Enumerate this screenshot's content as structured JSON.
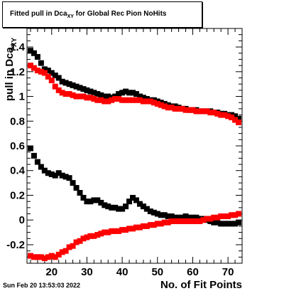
{
  "title": {
    "main": "Fitted pull in Dca",
    "sub": "XY",
    "rest": " for Global Rec Pion NoHits"
  },
  "datestamp": "Sun Feb 20 13:53:03 2022",
  "colors": {
    "series_black": "#000000",
    "series_red": "#ff0000",
    "frame": "#000000"
  },
  "chart_data": {
    "type": "scatter",
    "xlabel": "No. of Fit Points",
    "ylabel": {
      "main": "pull in Dca",
      "sub": "XY"
    },
    "xlim": [
      13,
      74
    ],
    "ylim": [
      -0.35,
      1.55
    ],
    "xticks": [
      20,
      30,
      40,
      50,
      60,
      70
    ],
    "yticks": [
      -0.2,
      0,
      0.2,
      0.4,
      0.6,
      0.8,
      1,
      1.2,
      1.4
    ],
    "ytick_labels": [
      "-0.2",
      "0",
      "0.2",
      "0.4",
      "0.6",
      "0.8",
      "1",
      "1.2",
      "1.4"
    ],
    "marker": "square",
    "series": [
      {
        "color": "#000000",
        "x": [
          14,
          15,
          16,
          17,
          18,
          19,
          20,
          21,
          22,
          23,
          24,
          25,
          26,
          27,
          28,
          29,
          30,
          31,
          32,
          33,
          34,
          35,
          36,
          37,
          38,
          39,
          40,
          41,
          42,
          43,
          44,
          45,
          46,
          47,
          48,
          49,
          50,
          51,
          52,
          53,
          54,
          55,
          56,
          57,
          58,
          59,
          60,
          61,
          62,
          63,
          64,
          65,
          66,
          67,
          68,
          69,
          70,
          71,
          72,
          73
        ],
        "y": [
          1.37,
          1.35,
          1.32,
          1.27,
          1.22,
          1.21,
          1.19,
          1.17,
          1.15,
          1.12,
          1.11,
          1.1,
          1.09,
          1.08,
          1.07,
          1.06,
          1.05,
          1.04,
          1.03,
          1.02,
          1.01,
          1.0,
          1.0,
          0.99,
          1.0,
          1.02,
          1.03,
          1.04,
          1.03,
          1.03,
          1.02,
          1.0,
          0.99,
          0.98,
          0.97,
          0.97,
          0.96,
          0.95,
          0.94,
          0.93,
          0.92,
          0.92,
          0.91,
          0.9,
          0.9,
          0.89,
          0.89,
          0.89,
          0.88,
          0.88,
          0.88,
          0.88,
          0.87,
          0.87,
          0.86,
          0.86,
          0.85,
          0.85,
          0.84,
          0.82
        ]
      },
      {
        "color": "#ff0000",
        "x": [
          14,
          15,
          16,
          17,
          18,
          19,
          20,
          21,
          22,
          23,
          24,
          25,
          26,
          27,
          28,
          29,
          30,
          31,
          32,
          33,
          34,
          35,
          36,
          37,
          38,
          39,
          40,
          41,
          42,
          43,
          44,
          45,
          46,
          47,
          48,
          49,
          50,
          51,
          52,
          53,
          54,
          55,
          56,
          57,
          58,
          59,
          60,
          61,
          62,
          63,
          64,
          65,
          66,
          67,
          68,
          69,
          70,
          71,
          72,
          73
        ],
        "y": [
          1.25,
          1.23,
          1.21,
          1.2,
          1.19,
          1.16,
          1.13,
          1.08,
          1.05,
          1.03,
          1.02,
          1.02,
          1.01,
          1.0,
          1.0,
          1.0,
          0.99,
          0.99,
          0.98,
          0.97,
          0.97,
          0.96,
          0.96,
          0.97,
          0.98,
          0.98,
          0.97,
          0.97,
          0.97,
          0.97,
          0.97,
          0.97,
          0.96,
          0.96,
          0.96,
          0.95,
          0.94,
          0.93,
          0.92,
          0.91,
          0.91,
          0.9,
          0.9,
          0.9,
          0.89,
          0.89,
          0.89,
          0.88,
          0.88,
          0.88,
          0.88,
          0.87,
          0.87,
          0.86,
          0.85,
          0.85,
          0.84,
          0.83,
          0.81,
          0.79
        ]
      },
      {
        "color": "#000000",
        "x": [
          14,
          15,
          16,
          17,
          18,
          19,
          20,
          21,
          22,
          23,
          24,
          25,
          26,
          27,
          28,
          29,
          30,
          31,
          32,
          33,
          34,
          35,
          36,
          37,
          38,
          39,
          40,
          41,
          42,
          43,
          44,
          45,
          46,
          47,
          48,
          49,
          50,
          51,
          52,
          53,
          54,
          55,
          56,
          57,
          58,
          59,
          60,
          61,
          62,
          63,
          64,
          65,
          66,
          67,
          68,
          69,
          70,
          71,
          72,
          73
        ],
        "y": [
          0.58,
          0.52,
          0.47,
          0.43,
          0.4,
          0.38,
          0.37,
          0.36,
          0.38,
          0.36,
          0.35,
          0.34,
          0.3,
          0.26,
          0.22,
          0.18,
          0.15,
          0.15,
          0.16,
          0.16,
          0.14,
          0.12,
          0.11,
          0.1,
          0.1,
          0.09,
          0.09,
          0.11,
          0.15,
          0.18,
          0.16,
          0.13,
          0.11,
          0.09,
          0.07,
          0.06,
          0.05,
          0.04,
          0.04,
          0.03,
          0.03,
          0.02,
          0.02,
          0.02,
          0.03,
          0.02,
          0.02,
          0.02,
          0.01,
          0.01,
          0.0,
          -0.01,
          -0.02,
          -0.02,
          -0.03,
          -0.03,
          -0.03,
          -0.03,
          -0.03,
          -0.02
        ]
      },
      {
        "color": "#ff0000",
        "x": [
          14,
          15,
          16,
          17,
          18,
          19,
          20,
          21,
          22,
          23,
          24,
          25,
          26,
          27,
          28,
          29,
          30,
          31,
          32,
          33,
          34,
          35,
          36,
          37,
          38,
          39,
          40,
          41,
          42,
          43,
          44,
          45,
          46,
          47,
          48,
          49,
          50,
          51,
          52,
          53,
          54,
          55,
          56,
          57,
          58,
          59,
          60,
          61,
          62,
          63,
          64,
          65,
          66,
          67,
          68,
          69,
          70,
          71,
          72,
          73
        ],
        "y": [
          -0.29,
          -0.3,
          -0.3,
          -0.3,
          -0.31,
          -0.3,
          -0.29,
          -0.3,
          -0.28,
          -0.26,
          -0.25,
          -0.22,
          -0.21,
          -0.18,
          -0.17,
          -0.15,
          -0.14,
          -0.13,
          -0.13,
          -0.12,
          -0.11,
          -0.1,
          -0.1,
          -0.09,
          -0.09,
          -0.09,
          -0.08,
          -0.08,
          -0.07,
          -0.07,
          -0.06,
          -0.06,
          -0.05,
          -0.05,
          -0.04,
          -0.04,
          -0.03,
          -0.03,
          -0.02,
          -0.02,
          -0.01,
          -0.01,
          -0.01,
          -0.01,
          -0.01,
          -0.01,
          -0.01,
          -0.01,
          -0.01,
          0.0,
          0.01,
          0.01,
          0.02,
          0.02,
          0.03,
          0.03,
          0.03,
          0.04,
          0.04,
          0.05
        ]
      }
    ]
  }
}
